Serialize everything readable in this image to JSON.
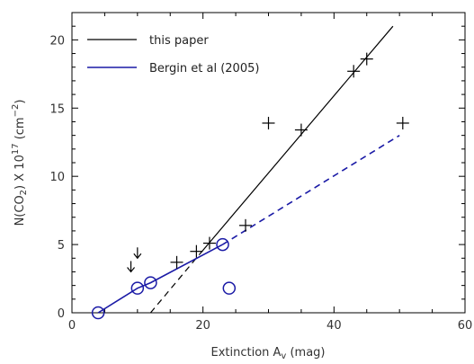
{
  "chart_data": {
    "type": "scatter",
    "xlabel": "Extinction A",
    "xlabel_sub": "v",
    "xlabel_unit": " (mag)",
    "ylabel_prefix": "N(CO",
    "ylabel_sub": "2",
    "ylabel_mid": ") X 10",
    "ylabel_sup": "17",
    "ylabel_unit_open": " (cm",
    "ylabel_unit_sup": "−2",
    "ylabel_unit_close": ")",
    "xlim": [
      0,
      60
    ],
    "ylim": [
      0,
      22
    ],
    "x_ticks": [
      0,
      20,
      40,
      60
    ],
    "y_ticks": [
      0,
      5,
      10,
      15,
      20
    ],
    "grid": false,
    "legend_position": "top-left",
    "legend": [
      {
        "label": "this paper",
        "color": "#000000",
        "style": "solid"
      },
      {
        "label": "Bergin et al (2005)",
        "color": "#1a1aa6",
        "style": "solid"
      }
    ],
    "series": [
      {
        "name": "this paper",
        "marker": "plus",
        "color": "#000000",
        "points": [
          [
            16,
            3.7
          ],
          [
            19,
            4.5
          ],
          [
            21,
            5.1
          ],
          [
            26.5,
            6.4
          ],
          [
            30,
            13.9
          ],
          [
            35,
            13.4
          ],
          [
            43,
            17.7
          ],
          [
            45,
            18.6
          ],
          [
            50.5,
            13.9
          ]
        ]
      },
      {
        "name": "Bergin et al (2005)",
        "marker": "circle",
        "color": "#1a1aa6",
        "points": [
          [
            4,
            0.0
          ],
          [
            10,
            1.8
          ],
          [
            12,
            2.2
          ],
          [
            23,
            5.0
          ],
          [
            24,
            1.8
          ]
        ]
      }
    ],
    "upper_limits": [
      {
        "x": 9,
        "y": 3.0
      },
      {
        "x": 10,
        "y": 4.0
      }
    ],
    "fit_lines": [
      {
        "label": "this paper",
        "color": "#000000",
        "style": "solid",
        "x": [
          19.5,
          49
        ],
        "y": [
          4.3,
          21.0
        ]
      },
      {
        "label": "this paper",
        "color": "#000000",
        "style": "dashed",
        "x": [
          12,
          19.5
        ],
        "y": [
          0.0,
          4.3
        ]
      },
      {
        "label": "Bergin et al (2005)",
        "color": "#1a1aa6",
        "style": "solid",
        "x": [
          4,
          10,
          12,
          23
        ],
        "y": [
          0.0,
          1.8,
          2.2,
          5.0
        ]
      },
      {
        "label": "Bergin et al (2005)",
        "color": "#1a1aa6",
        "style": "dashed",
        "x": [
          23,
          50
        ],
        "y": [
          5.0,
          13.0
        ]
      }
    ]
  }
}
